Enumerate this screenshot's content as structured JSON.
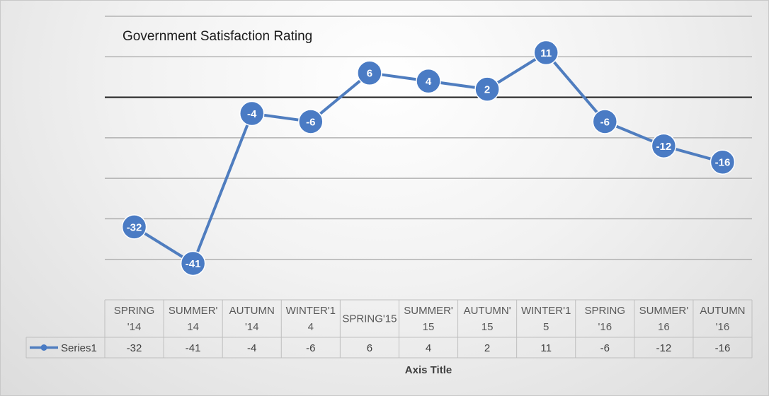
{
  "chart_data": {
    "type": "line",
    "title": "Government Satisfaction Rating",
    "xlabel": "Axis Title",
    "ylabel": "",
    "categories": [
      [
        "SPRING",
        "'14"
      ],
      [
        "SUMMER'",
        "14"
      ],
      [
        "AUTUMN",
        "'14"
      ],
      [
        "WINTER'1",
        "4"
      ],
      [
        "SPRING'15"
      ],
      [
        "SUMMER'",
        "15"
      ],
      [
        "AUTUMN'",
        "15"
      ],
      [
        "WINTER'1",
        "5"
      ],
      [
        "SPRING",
        "'16"
      ],
      [
        "SUMMER'",
        "16"
      ],
      [
        "AUTUMN",
        "'16"
      ]
    ],
    "series": [
      {
        "name": "Series1",
        "values": [
          -32,
          -41,
          -4,
          -6,
          6,
          4,
          2,
          11,
          -6,
          -12,
          -16
        ]
      }
    ],
    "ylim": [
      -50,
      20
    ],
    "zero_line": true,
    "grid": true,
    "data_table": true,
    "colors": {
      "line": "#4f7dbf",
      "marker": "#4a7bc4",
      "grid": "#a6a6a6",
      "zero": "#262626",
      "table_border": "#bfbfbf"
    }
  }
}
